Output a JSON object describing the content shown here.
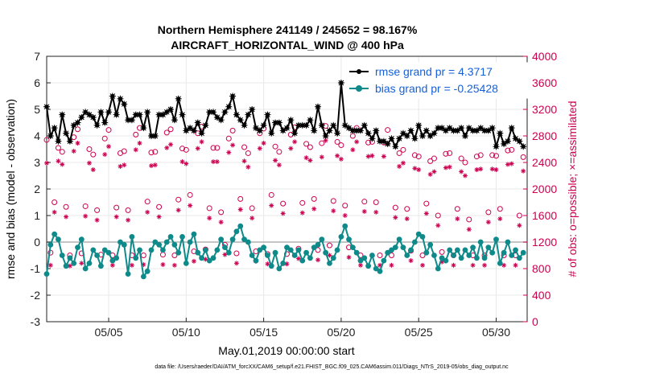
{
  "chart_data": {
    "type": "line",
    "title": "Northern Hemisphere 241149 / 245652 = 98.167%",
    "subtitle": "AIRCRAFT_HORIZONTAL_WIND @ 400 hPa",
    "xlabel": "May.01,2019 00:00:00 start",
    "ylabel": "rmse and bias (model - observation)",
    "y2label": "# of obs: o=possible; ×=assimilated",
    "footnote": "data file: /Users/raeder/DAI/ATM_forcXX/CAM6_setup/f.e21.FHIST_BGC.f09_025.CAM6assim.011/Diags_NTrS_2019-05/obs_diag_output.nc",
    "xlim": [
      1,
      32
    ],
    "ylim": [
      -3,
      7
    ],
    "y2lim": [
      0,
      4000
    ],
    "xticks": [
      5,
      10,
      15,
      20,
      25,
      30
    ],
    "xticklabels": [
      "05/05",
      "05/10",
      "05/15",
      "05/20",
      "05/25",
      "05/30"
    ],
    "yticks": [
      -3,
      -2,
      -1,
      0,
      1,
      2,
      3,
      4,
      5,
      6,
      7
    ],
    "y2ticks": [
      0,
      400,
      800,
      1200,
      1600,
      2000,
      2400,
      2800,
      3200,
      3600,
      4000
    ],
    "grid": true,
    "legend_position": "top-right",
    "series": [
      {
        "name": "rmse grand pr = 4.3717",
        "color": "#000000",
        "marker": "star",
        "x": [
          1.0,
          1.25,
          1.5,
          1.75,
          2.0,
          2.25,
          2.5,
          2.75,
          3.0,
          3.25,
          3.5,
          3.75,
          4.0,
          4.25,
          4.5,
          4.75,
          5.0,
          5.25,
          5.5,
          5.75,
          6.0,
          6.25,
          6.5,
          6.75,
          7.0,
          7.25,
          7.5,
          7.75,
          8.0,
          8.25,
          8.5,
          8.75,
          9.0,
          9.25,
          9.5,
          9.75,
          10.0,
          10.25,
          10.5,
          10.75,
          11.0,
          11.25,
          11.5,
          11.75,
          12.0,
          12.25,
          12.5,
          12.75,
          13.0,
          13.25,
          13.5,
          13.75,
          14.0,
          14.25,
          14.5,
          14.75,
          15.0,
          15.25,
          15.5,
          15.75,
          16.0,
          16.25,
          16.5,
          16.75,
          17.0,
          17.25,
          17.5,
          17.75,
          18.0,
          18.25,
          18.5,
          18.75,
          19.0,
          19.25,
          19.5,
          19.75,
          20.0,
          20.25,
          20.5,
          20.75,
          21.0,
          21.25,
          21.5,
          21.75,
          22.0,
          22.25,
          22.5,
          22.75,
          23.0,
          23.25,
          23.5,
          23.75,
          24.0,
          24.25,
          24.5,
          24.75,
          25.0,
          25.25,
          25.5,
          25.75,
          26.0,
          26.25,
          26.5,
          26.75,
          27.0,
          27.25,
          27.5,
          27.75,
          28.0,
          28.25,
          28.5,
          28.75,
          29.0,
          29.25,
          29.5,
          29.75,
          30.0,
          30.25,
          30.5,
          30.75,
          31.0,
          31.25,
          31.5,
          31.75
        ],
        "values": [
          5.1,
          4.0,
          4.3,
          3.8,
          4.8,
          4.1,
          3.8,
          4.4,
          4.5,
          4.7,
          4.9,
          4.8,
          4.7,
          4.4,
          4.9,
          4.5,
          4.9,
          5.5,
          4.8,
          5.4,
          5.2,
          4.6,
          4.6,
          4.8,
          4.8,
          4.3,
          4.9,
          4.0,
          4.0,
          4.8,
          4.8,
          4.9,
          5.0,
          4.6,
          5.4,
          4.8,
          4.2,
          4.3,
          4.2,
          4.5,
          4.1,
          4.4,
          4.9,
          4.9,
          4.7,
          4.6,
          4.9,
          5.1,
          5.5,
          4.8,
          4.6,
          4.4,
          4.8,
          5.0,
          4.3,
          4.2,
          4.4,
          4.8,
          4.1,
          4.5,
          4.5,
          4.2,
          4.3,
          4.6,
          4.1,
          4.4,
          4.4,
          4.4,
          4.6,
          4.2,
          5.1,
          4.4,
          4.0,
          4.2,
          4.4,
          4.1,
          6.0,
          4.4,
          4.3,
          4.2,
          4.2,
          4.2,
          4.4,
          4.1,
          3.9,
          4.2,
          3.8,
          3.8,
          3.7,
          3.9,
          3.6,
          3.9,
          4.1,
          4.0,
          4.2,
          3.9,
          4.4,
          4.0,
          4.2,
          4.0,
          4.1,
          4.3,
          4.3,
          4.2,
          4.3,
          4.2,
          4.2,
          4.3,
          4.0,
          4.3,
          4.2,
          4.2,
          4.3,
          4.2,
          4.2,
          4.3,
          3.6,
          4.1,
          3.7,
          3.8,
          4.3,
          3.9,
          3.8,
          3.6
        ]
      },
      {
        "name": "bias grand pr = -0.25428",
        "color": "#0e8a8a",
        "marker": "circle",
        "x": [
          1.0,
          1.25,
          1.5,
          1.75,
          2.0,
          2.25,
          2.5,
          2.75,
          3.0,
          3.25,
          3.5,
          3.75,
          4.0,
          4.25,
          4.5,
          4.75,
          5.0,
          5.25,
          5.5,
          5.75,
          6.0,
          6.25,
          6.5,
          6.75,
          7.0,
          7.25,
          7.5,
          7.75,
          8.0,
          8.25,
          8.5,
          8.75,
          9.0,
          9.25,
          9.5,
          9.75,
          10.0,
          10.25,
          10.5,
          10.75,
          11.0,
          11.25,
          11.5,
          11.75,
          12.0,
          12.25,
          12.5,
          12.75,
          13.0,
          13.25,
          13.5,
          13.75,
          14.0,
          14.25,
          14.5,
          14.75,
          15.0,
          15.25,
          15.5,
          15.75,
          16.0,
          16.25,
          16.5,
          16.75,
          17.0,
          17.25,
          17.5,
          17.75,
          18.0,
          18.25,
          18.5,
          18.75,
          19.0,
          19.25,
          19.5,
          19.75,
          20.0,
          20.25,
          20.5,
          20.75,
          21.0,
          21.25,
          21.5,
          21.75,
          22.0,
          22.25,
          22.5,
          22.75,
          23.0,
          23.25,
          23.5,
          23.75,
          24.0,
          24.25,
          24.5,
          24.75,
          25.0,
          25.25,
          25.5,
          25.75,
          26.0,
          26.25,
          26.5,
          26.75,
          27.0,
          27.25,
          27.5,
          27.75,
          28.0,
          28.25,
          28.5,
          28.75,
          29.0,
          29.25,
          29.5,
          29.75,
          30.0,
          30.25,
          30.5,
          30.75,
          31.0,
          31.25,
          31.5,
          31.75
        ],
        "values": [
          -1.2,
          -0.1,
          0.3,
          0.1,
          -0.5,
          -0.9,
          -0.6,
          -0.8,
          -0.2,
          0.1,
          -1.0,
          -0.8,
          -0.3,
          -0.5,
          -0.9,
          -0.3,
          -0.4,
          -0.7,
          -0.6,
          0.0,
          -0.1,
          -1.2,
          0.2,
          -0.6,
          -0.3,
          -1.3,
          -1.1,
          -0.3,
          0.0,
          -0.1,
          -0.3,
          0.0,
          0.2,
          -0.1,
          -0.4,
          0.2,
          -0.8,
          0.0,
          0.3,
          -0.4,
          -0.6,
          -0.3,
          -0.7,
          -0.6,
          -0.3,
          0.1,
          -0.2,
          -0.4,
          0.1,
          0.4,
          0.6,
          0.1,
          0.0,
          -0.5,
          -0.7,
          -0.3,
          -0.2,
          -0.5,
          -0.9,
          -0.4,
          -1.0,
          -0.8,
          -0.2,
          -0.3,
          -0.5,
          -0.3,
          -0.7,
          -0.4,
          -0.6,
          -0.2,
          -0.1,
          0.1,
          -0.4,
          -0.8,
          -0.6,
          -0.3,
          0.2,
          0.6,
          0.1,
          -0.2,
          -0.4,
          -0.7,
          -0.6,
          -0.9,
          -0.5,
          -1.0,
          -1.1,
          -0.7,
          -0.4,
          -0.3,
          -0.2,
          0.1,
          -0.2,
          -0.5,
          -0.3,
          0.0,
          0.3,
          0.2,
          -0.4,
          -0.1,
          -0.5,
          -1.0,
          -0.6,
          -0.7,
          -0.3,
          -0.5,
          -0.3,
          -0.6,
          -0.3,
          -0.5,
          -0.2,
          -0.6,
          0.0,
          -0.6,
          -0.2,
          -0.4,
          0.1,
          -0.8,
          -0.4,
          0.0,
          -0.5,
          -0.3,
          -0.6,
          -0.4
        ]
      },
      {
        "name": "obs possible",
        "color": "#cc0050",
        "marker": "open-circle",
        "axis": "right",
        "x": [
          1.0,
          1.25,
          1.5,
          1.75,
          2.0,
          2.25,
          2.5,
          2.75,
          3.0,
          3.25,
          3.5,
          3.75,
          4.0,
          4.25,
          4.5,
          4.75,
          5.0,
          5.25,
          5.5,
          5.75,
          6.0,
          6.25,
          6.5,
          6.75,
          7.0,
          7.25,
          7.5,
          7.75,
          8.0,
          8.25,
          8.5,
          8.75,
          9.0,
          9.25,
          9.5,
          9.75,
          10.0,
          10.25,
          10.5,
          10.75,
          11.0,
          11.25,
          11.5,
          11.75,
          12.0,
          12.25,
          12.5,
          12.75,
          13.0,
          13.25,
          13.5,
          13.75,
          14.0,
          14.25,
          14.5,
          14.75,
          15.0,
          15.25,
          15.5,
          15.75,
          16.0,
          16.25,
          16.5,
          16.75,
          17.0,
          17.25,
          17.5,
          17.75,
          18.0,
          18.25,
          18.5,
          18.75,
          19.0,
          19.25,
          19.5,
          19.75,
          20.0,
          20.25,
          20.5,
          20.75,
          21.0,
          21.25,
          21.5,
          21.75,
          22.0,
          22.25,
          22.5,
          22.75,
          23.0,
          23.25,
          23.5,
          23.75,
          24.0,
          24.25,
          24.5,
          24.75,
          25.0,
          25.25,
          25.5,
          25.75,
          26.0,
          26.25,
          26.5,
          26.75,
          27.0,
          27.25,
          27.5,
          27.75,
          28.0,
          28.25,
          28.5,
          28.75,
          29.0,
          29.25,
          29.5,
          29.75,
          30.0,
          30.25,
          30.5,
          30.75,
          31.0,
          31.25,
          31.5,
          31.75
        ],
        "values": [
          2740,
          1040,
          1800,
          2620,
          2560,
          1730,
          1000,
          2780,
          2900,
          1030,
          1740,
          2600,
          2520,
          1680,
          1010,
          2760,
          2890,
          1000,
          1720,
          2540,
          2570,
          1680,
          1000,
          2820,
          2920,
          1000,
          1810,
          2550,
          2560,
          1730,
          1010,
          2850,
          2900,
          1000,
          1840,
          2610,
          2590,
          1910,
          1060,
          2840,
          2940,
          1090,
          1710,
          2620,
          2620,
          1650,
          1160,
          2760,
          2880,
          1030,
          1850,
          2630,
          2540,
          1710,
          1060,
          2840,
          2910,
          1020,
          1910,
          2640,
          2560,
          1780,
          1020,
          2820,
          2930,
          1100,
          1790,
          2680,
          2630,
          1850,
          1080,
          2690,
          2950,
          1150,
          1820,
          2710,
          2660,
          1750,
          1120,
          2800,
          2920,
          1000,
          1810,
          2700,
          2710,
          1800,
          1000,
          2700,
          2890,
          1000,
          1720,
          2540,
          2590,
          1700,
          1070,
          2510,
          2490,
          1000,
          1780,
          2420,
          2460,
          1600,
          1050,
          2530,
          2540,
          1000,
          1700,
          2460,
          2400,
          1540,
          1000,
          2490,
          2510,
          1000,
          1650,
          2510,
          2500,
          1700,
          1000,
          2580,
          2590,
          1000,
          1600,
          2480
        ]
      },
      {
        "name": "obs assimilated",
        "color": "#cc0050",
        "marker": "asterisk",
        "axis": "right",
        "x": [
          1.0,
          1.25,
          1.5,
          1.75,
          2.0,
          2.25,
          2.5,
          2.75,
          3.0,
          3.25,
          3.5,
          3.75,
          4.0,
          4.25,
          4.5,
          4.75,
          5.0,
          5.25,
          5.5,
          5.75,
          6.0,
          6.25,
          6.5,
          6.75,
          7.0,
          7.25,
          7.5,
          7.75,
          8.0,
          8.25,
          8.5,
          8.75,
          9.0,
          9.25,
          9.5,
          9.75,
          10.0,
          10.25,
          10.5,
          10.75,
          11.0,
          11.25,
          11.5,
          11.75,
          12.0,
          12.25,
          12.5,
          12.75,
          13.0,
          13.25,
          13.5,
          13.75,
          14.0,
          14.25,
          14.5,
          14.75,
          15.0,
          15.25,
          15.5,
          15.75,
          16.0,
          16.25,
          16.5,
          16.75,
          17.0,
          17.25,
          17.5,
          17.75,
          18.0,
          18.25,
          18.5,
          18.75,
          19.0,
          19.25,
          19.5,
          19.75,
          20.0,
          20.25,
          20.5,
          20.75,
          21.0,
          21.25,
          21.5,
          21.75,
          22.0,
          22.25,
          22.5,
          22.75,
          23.0,
          23.25,
          23.5,
          23.75,
          24.0,
          24.25,
          24.5,
          24.75,
          25.0,
          25.25,
          25.5,
          25.75,
          26.0,
          26.25,
          26.5,
          26.75,
          27.0,
          27.25,
          27.5,
          27.75,
          28.0,
          28.25,
          28.5,
          28.75,
          29.0,
          29.25,
          29.5,
          29.75,
          30.0,
          30.25,
          30.5,
          30.75,
          31.0,
          31.25,
          31.5,
          31.75
        ],
        "values": [
          2500,
          960,
          1760,
          2530,
          2480,
          1690,
          950,
          2680,
          2800,
          990,
          1700,
          2500,
          2400,
          1640,
          960,
          2630,
          2750,
          960,
          1690,
          2450,
          2470,
          1640,
          960,
          2700,
          2800,
          970,
          1760,
          2460,
          2470,
          1690,
          970,
          2730,
          2780,
          960,
          1790,
          2520,
          2490,
          1860,
          1020,
          2720,
          2820,
          1050,
          1670,
          2520,
          2520,
          1610,
          1120,
          2660,
          2770,
          990,
          1800,
          2530,
          2440,
          1670,
          1020,
          2720,
          2800,
          980,
          1860,
          2540,
          2470,
          1740,
          980,
          2720,
          2820,
          1060,
          1750,
          2580,
          2540,
          1810,
          1040,
          2590,
          2840,
          1110,
          1780,
          2610,
          2560,
          1710,
          1080,
          2700,
          2820,
          960,
          1770,
          2600,
          2610,
          1760,
          960,
          2600,
          2790,
          960,
          1680,
          2450,
          2500,
          1660,
          1030,
          2420,
          2400,
          960,
          1740,
          2330,
          2370,
          1560,
          1010,
          2430,
          2440,
          960,
          1660,
          2370,
          2310,
          1500,
          960,
          2400,
          2410,
          960,
          1610,
          2410,
          2400,
          1660,
          960,
          2480,
          2490,
          960,
          1560,
          2380
        ]
      }
    ]
  }
}
